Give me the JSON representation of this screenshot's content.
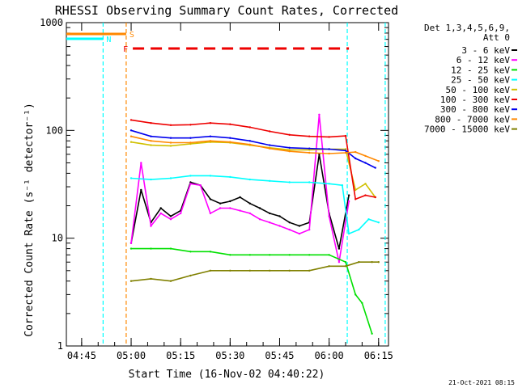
{
  "chart_data": {
    "type": "line",
    "title": "RHESSI Observing Summary Count Rates, Corrected",
    "xlabel": "Start Time (16-Nov-02 04:40:22)",
    "ylabel": "Corrected Count Rate (s⁻¹ detector⁻¹)",
    "yscale": "log",
    "ylim": [
      1,
      1000
    ],
    "xlim": [
      "04:40:22",
      "06:18:00"
    ],
    "x_ticks": [
      "04:45",
      "05:00",
      "05:15",
      "05:30",
      "05:45",
      "06:00",
      "06:15"
    ],
    "y_ticks": [
      "1",
      "10",
      "100",
      "1000"
    ],
    "footer": "21-Oct-2021 08:15",
    "legend": {
      "header": [
        "Det 1,3,4,5,6,9,",
        "Att 0"
      ],
      "placement": "right",
      "entries": [
        {
          "label": "3 - 6 keV",
          "color": "#000000"
        },
        {
          "label": "6 - 12 keV",
          "color": "#ff00ff"
        },
        {
          "label": "12 - 25 keV",
          "color": "#00e000"
        },
        {
          "label": "25 - 50 keV",
          "color": "#00ffff"
        },
        {
          "label": "50 - 100 keV",
          "color": "#d0c000"
        },
        {
          "label": "100 - 300 keV",
          "color": "#ee0000"
        },
        {
          "label": "300 - 800 keV",
          "color": "#0000ee"
        },
        {
          "label": "800 - 7000 keV",
          "color": "#ff8800"
        },
        {
          "label": "7000 - 15000 keV",
          "color": "#808000"
        }
      ]
    },
    "flags": [
      {
        "label": "S",
        "color": "#ff8800",
        "start": "04:40:22",
        "end": "04:58:30"
      },
      {
        "label": "N",
        "color": "#00ffff",
        "start": "04:40:22",
        "end": "04:51:30"
      },
      {
        "label": "F",
        "color": "#ee0000",
        "start": "05:00:30",
        "end": "06:06:00"
      }
    ],
    "vlines": [
      {
        "time": "04:51:30",
        "color": "#00ffff"
      },
      {
        "time": "04:58:30",
        "color": "#ff8800"
      },
      {
        "time": "06:05:30",
        "color": "#00ffff"
      },
      {
        "time": "06:17:00",
        "color": "#00ffff"
      }
    ],
    "series": [
      {
        "name": "3 - 6 keV",
        "color": "#000000",
        "x": [
          "05:00",
          "05:03",
          "05:06",
          "05:09",
          "05:12",
          "05:15",
          "05:18",
          "05:21",
          "05:24",
          "05:27",
          "05:30",
          "05:33",
          "05:36",
          "05:39",
          "05:42",
          "05:45",
          "05:48",
          "05:51",
          "05:54",
          "05:57",
          "06:00",
          "06:03",
          "06:06"
        ],
        "y": [
          9,
          28,
          14,
          19,
          16,
          18,
          33,
          31,
          23,
          21,
          22,
          24,
          21,
          19,
          17,
          16,
          14,
          13,
          14,
          60,
          17,
          8,
          25
        ]
      },
      {
        "name": "6 - 12 keV",
        "color": "#ff00ff",
        "x": [
          "05:00",
          "05:03",
          "05:06",
          "05:09",
          "05:12",
          "05:15",
          "05:18",
          "05:21",
          "05:24",
          "05:27",
          "05:30",
          "05:33",
          "05:36",
          "05:39",
          "05:42",
          "05:45",
          "05:48",
          "05:51",
          "05:54",
          "05:57",
          "06:00",
          "06:03",
          "06:06"
        ],
        "y": [
          9,
          50,
          13,
          17,
          15,
          17,
          32,
          31,
          17,
          19,
          19,
          18,
          17,
          15,
          14,
          13,
          12,
          11,
          12,
          140,
          16,
          6,
          22
        ]
      },
      {
        "name": "12 - 25 keV",
        "color": "#00e000",
        "x": [
          "05:00",
          "05:06",
          "05:12",
          "05:18",
          "05:24",
          "05:30",
          "05:36",
          "05:42",
          "05:48",
          "05:54",
          "06:00",
          "06:05",
          "06:08",
          "06:10",
          "06:13"
        ],
        "y": [
          8,
          8,
          8,
          7.5,
          7.5,
          7,
          7,
          7,
          7,
          7,
          7,
          6,
          3,
          2.5,
          1.3
        ]
      },
      {
        "name": "25 - 50 keV",
        "color": "#00ffff",
        "x": [
          "05:00",
          "05:06",
          "05:12",
          "05:18",
          "05:24",
          "05:30",
          "05:36",
          "05:42",
          "05:48",
          "05:54",
          "06:00",
          "06:04",
          "06:06",
          "06:09",
          "06:12",
          "06:15"
        ],
        "y": [
          36,
          35,
          36,
          38,
          38,
          37,
          35,
          34,
          33,
          33,
          32,
          31,
          11,
          12,
          15,
          14
        ]
      },
      {
        "name": "50 - 100 keV",
        "color": "#d0c000",
        "x": [
          "05:00",
          "05:06",
          "05:12",
          "05:18",
          "05:24",
          "05:30",
          "05:36",
          "05:42",
          "05:48",
          "05:54",
          "06:00",
          "06:05",
          "06:08",
          "06:11",
          "06:14"
        ],
        "y": [
          78,
          73,
          72,
          75,
          78,
          77,
          73,
          69,
          66,
          66,
          67,
          67,
          28,
          32,
          24
        ]
      },
      {
        "name": "100 - 300 keV",
        "color": "#ee0000",
        "x": [
          "05:00",
          "05:06",
          "05:12",
          "05:18",
          "05:24",
          "05:30",
          "05:36",
          "05:42",
          "05:48",
          "05:54",
          "06:00",
          "06:05",
          "06:08",
          "06:11",
          "06:14"
        ],
        "y": [
          125,
          117,
          112,
          113,
          117,
          114,
          107,
          98,
          91,
          88,
          87,
          89,
          23,
          25,
          24
        ]
      },
      {
        "name": "300 - 800 keV",
        "color": "#0000ee",
        "x": [
          "05:00",
          "05:06",
          "05:12",
          "05:18",
          "05:24",
          "05:30",
          "05:36",
          "05:42",
          "05:48",
          "05:54",
          "06:00",
          "06:05",
          "06:08",
          "06:11",
          "06:14"
        ],
        "y": [
          100,
          88,
          85,
          85,
          88,
          85,
          80,
          73,
          69,
          68,
          67,
          65,
          55,
          50,
          45
        ]
      },
      {
        "name": "800 - 7000 keV",
        "color": "#ff8800",
        "x": [
          "05:00",
          "05:06",
          "05:12",
          "05:18",
          "05:24",
          "05:30",
          "05:36",
          "05:42",
          "05:48",
          "05:54",
          "06:00",
          "06:05",
          "06:08",
          "06:11",
          "06:15"
        ],
        "y": [
          88,
          80,
          77,
          77,
          80,
          78,
          74,
          68,
          64,
          62,
          61,
          62,
          63,
          58,
          52
        ]
      },
      {
        "name": "7000 - 15000 keV",
        "color": "#808000",
        "x": [
          "05:00",
          "05:06",
          "05:12",
          "05:18",
          "05:24",
          "05:30",
          "05:36",
          "05:42",
          "05:48",
          "05:54",
          "06:00",
          "06:05",
          "06:09",
          "06:13",
          "06:15"
        ],
        "y": [
          4,
          4.2,
          4,
          4.5,
          5,
          5,
          5,
          5,
          5,
          5,
          5.5,
          5.5,
          6,
          6,
          6
        ]
      }
    ]
  }
}
